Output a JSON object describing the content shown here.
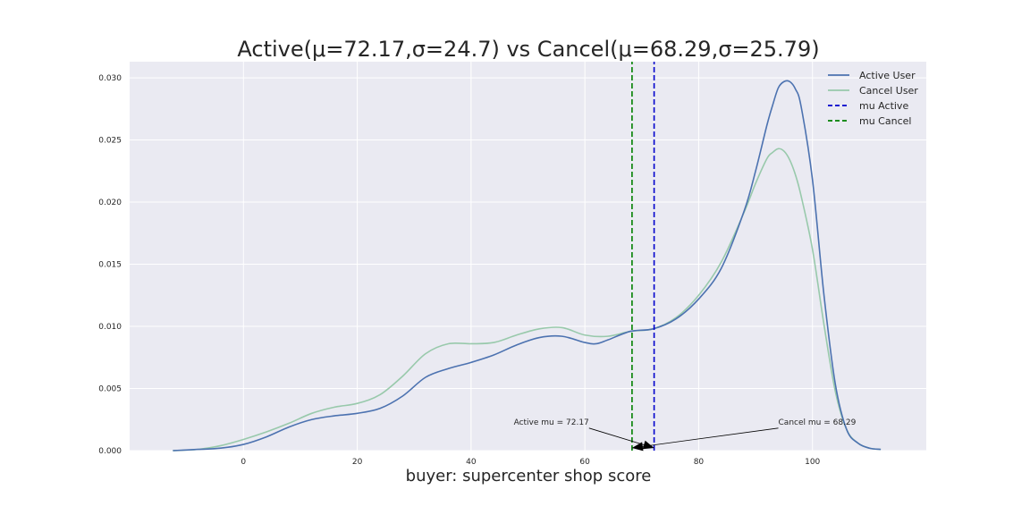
{
  "chart_data": {
    "type": "line",
    "title": "Active(μ=72.17,σ=24.7) vs Cancel(μ=68.29,σ=25.79)",
    "xlabel": "buyer: supercenter shop score",
    "ylabel": "",
    "xlim": [
      -20,
      120
    ],
    "ylim": [
      0,
      0.0313
    ],
    "xticks": [
      0,
      20,
      40,
      60,
      80,
      100
    ],
    "xtick_labels": [
      "0",
      "20",
      "40",
      "60",
      "80",
      "100"
    ],
    "yticks": [
      0.0,
      0.005,
      0.01,
      0.015,
      0.02,
      0.025,
      0.03
    ],
    "ytick_labels": [
      "0.000",
      "0.005",
      "0.010",
      "0.015",
      "0.020",
      "0.025",
      "0.030"
    ],
    "grid": true,
    "background": "#eaeaf2",
    "legend_position": "top-right",
    "series": [
      {
        "name": "Active User",
        "color": "#4c72b0",
        "style": "solid",
        "x": [
          -12.4,
          -8,
          -4,
          0,
          4,
          8,
          12,
          16,
          20,
          24,
          28,
          32,
          36,
          40,
          44,
          48,
          52,
          56,
          60,
          62,
          64,
          68,
          72,
          76,
          80,
          84,
          88,
          90,
          92,
          93,
          94,
          95,
          96,
          97,
          98,
          100,
          102,
          104,
          106,
          108,
          110,
          112
        ],
        "y": [
          0.0,
          0.0001,
          0.0002,
          0.0005,
          0.0011,
          0.0019,
          0.0025,
          0.0028,
          0.003,
          0.0034,
          0.0044,
          0.0059,
          0.0066,
          0.0071,
          0.0077,
          0.0085,
          0.0091,
          0.0092,
          0.0087,
          0.0086,
          0.0089,
          0.0096,
          0.0098,
          0.0106,
          0.0122,
          0.0147,
          0.0193,
          0.0225,
          0.0262,
          0.0278,
          0.0292,
          0.0297,
          0.0297,
          0.0291,
          0.0277,
          0.0218,
          0.0126,
          0.0054,
          0.0017,
          0.0006,
          0.0002,
          0.0001
        ]
      },
      {
        "name": "Cancel User",
        "color": "#98c9ab",
        "style": "solid",
        "x": [
          -12.4,
          -8,
          -4,
          0,
          4,
          8,
          12,
          16,
          20,
          24,
          28,
          32,
          36,
          40,
          44,
          48,
          52,
          56,
          60,
          64,
          68,
          72,
          76,
          80,
          84,
          88,
          90,
          92,
          93,
          94,
          95,
          96,
          97,
          98,
          100,
          102,
          104,
          106,
          108,
          110,
          112
        ],
        "y": [
          0.0,
          0.0001,
          0.0004,
          0.0009,
          0.0015,
          0.0022,
          0.003,
          0.0035,
          0.0038,
          0.0045,
          0.006,
          0.0078,
          0.0086,
          0.0086,
          0.0087,
          0.0093,
          0.0098,
          0.0099,
          0.0093,
          0.0092,
          0.0096,
          0.0098,
          0.0107,
          0.0125,
          0.0152,
          0.0192,
          0.0215,
          0.0235,
          0.024,
          0.0243,
          0.0241,
          0.0234,
          0.0222,
          0.0205,
          0.0162,
          0.0102,
          0.0048,
          0.0017,
          0.0006,
          0.0002,
          0.0001
        ]
      },
      {
        "name": "mu Active",
        "color": "#0000cc",
        "style": "dashed",
        "x": [
          72.17,
          72.17
        ],
        "y": [
          0.0,
          0.0313
        ]
      },
      {
        "name": "mu Cancel",
        "color": "#008000",
        "style": "dashed",
        "x": [
          68.29,
          68.29
        ],
        "y": [
          0.0,
          0.0313
        ]
      }
    ],
    "annotations": [
      {
        "text": "Active mu = 72.17",
        "x": 72.17,
        "y": 0.0,
        "text_x": 47.5,
        "text_y": 0.0021,
        "anchor": "start"
      },
      {
        "text": "Cancel mu = 68.29",
        "x": 68.29,
        "y": 0.0,
        "text_x": 94,
        "text_y": 0.0021,
        "anchor": "start"
      }
    ]
  }
}
